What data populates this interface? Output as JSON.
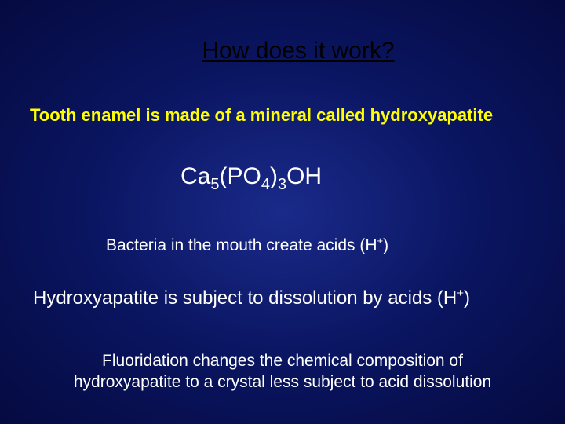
{
  "slide": {
    "background": {
      "gradient_center": "#1a2a8a",
      "gradient_mid": "#0a1560",
      "gradient_edge": "#050a40"
    },
    "title": {
      "text": "How does it work?",
      "color": "#000000",
      "fontsize": 30,
      "underline": true
    },
    "line1": {
      "text": "Tooth enamel is made of a mineral called hydroxyapatite",
      "color": "#ffff00",
      "fontsize": 22,
      "bold": true
    },
    "formula": {
      "parts": [
        "Ca",
        "5",
        "(PO",
        "4",
        ")",
        "3",
        "OH"
      ],
      "sub_indices": [
        1,
        3,
        5
      ],
      "color": "#ffffff",
      "fontsize": 30
    },
    "line2": {
      "prefix": "Bacteria in the mouth create acids (H",
      "sup": "+",
      "suffix": ")",
      "color": "#ffffff",
      "fontsize": 21
    },
    "line3": {
      "prefix": "Hydroxyapatite is subject to dissolution by acids (H",
      "sup": "+",
      "suffix": ")",
      "color": "#ffffff",
      "fontsize": 24
    },
    "line4": {
      "text_a": "Fluoridation changes the chemical composition of",
      "text_b": "hydroxyapatite to a crystal less subject to acid dissolution",
      "color": "#ffffff",
      "fontsize": 21
    }
  }
}
